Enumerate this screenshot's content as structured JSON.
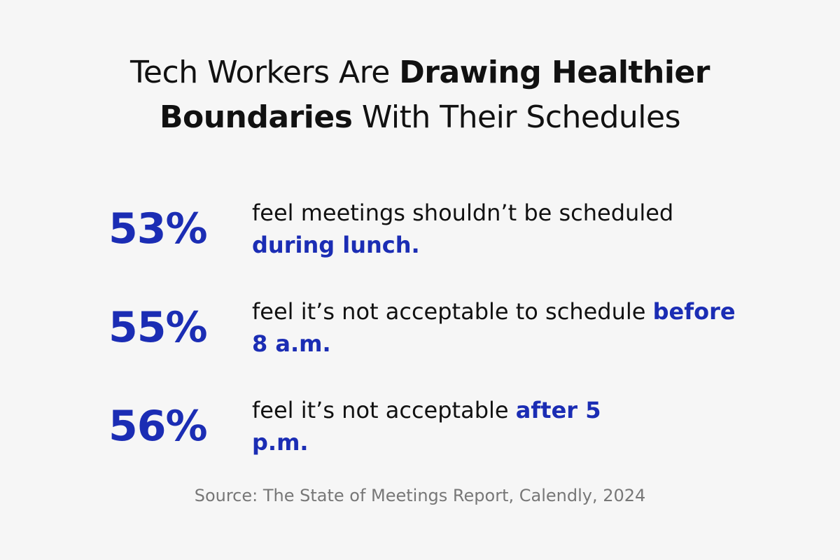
{
  "header": {
    "title": [
      {
        "text": "Tech Workers Are ",
        "bold": false
      },
      {
        "text": "Drawing Healthier Boundaries",
        "bold": true
      },
      {
        "text": " With Their Schedules",
        "bold": false
      }
    ]
  },
  "stats": [
    {
      "value": "53%",
      "text": [
        {
          "text": "feel meetings shouldn’t be scheduled ",
          "highlight": false
        },
        {
          "text": "during lunch.",
          "highlight": true
        }
      ]
    },
    {
      "value": "55%",
      "text": [
        {
          "text": "feel it’s not acceptable to schedule ",
          "highlight": false
        },
        {
          "text": "before 8 a.m.",
          "highlight": true
        }
      ]
    },
    {
      "value": "56%",
      "text": [
        {
          "text": "feel it’s not acceptable ",
          "highlight": false
        },
        {
          "text": "after 5 p.m.",
          "highlight": true
        }
      ]
    }
  ],
  "accent_color": "#1b2db4",
  "source": "Source: The State of Meetings Report, Calendly, 2024"
}
